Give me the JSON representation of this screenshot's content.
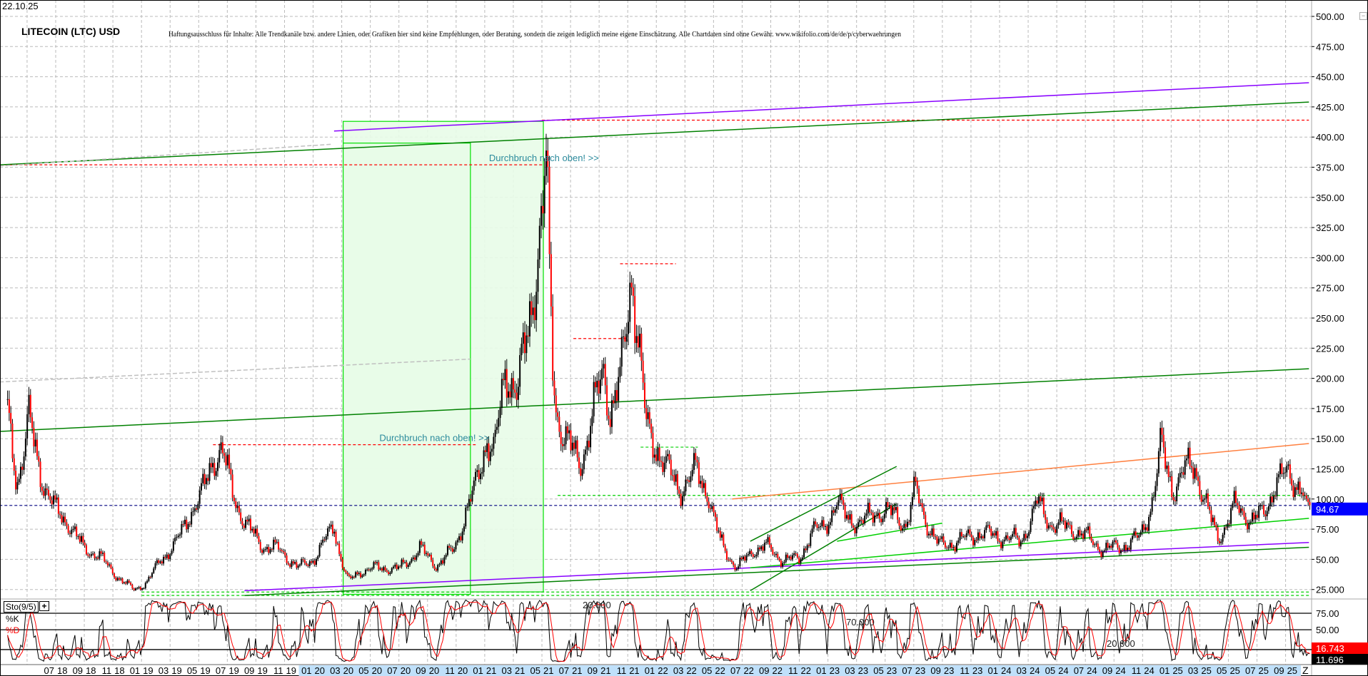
{
  "header": {
    "date": "22.10.25",
    "title": "LITECOIN (LTC) USD",
    "disclaimer": "Haftungsausschluss für Inhalte: Alle Trendkanäle bzw. andere Linien, oder Grafiken hier sind keine Empfehlungen, oder Beratung, sondern die zeigen lediglich meine eigene Einschätzung. Alle Chartdaten sind ohne Gewähr.  www.wikifolio.com/de/de/p/cyberwaehrungen"
  },
  "indicator": {
    "name": "Sto(9/5)",
    "k_label": "%K",
    "d_label": "%D",
    "plus_icon": "plus-icon",
    "collapse_icon": "minus-box-icon"
  },
  "colors": {
    "up": "#000000",
    "down": "#ff0000",
    "last_price_bg": "#0000ff",
    "sto_d_bg": "#ff0000",
    "sto_k_bg": "#000000",
    "annotation": "#2b8a9c",
    "zone_fill": "#e8fce8",
    "zone_stroke": "#00e000"
  },
  "chart_data": {
    "type": "candlestick",
    "title": "LITECOIN (LTC) USD",
    "ylim": [
      20,
      510
    ],
    "yticks": [
      "25.000",
      "50.00",
      "75.00",
      "100.00",
      "125.00",
      "150.00",
      "175.00",
      "200.00",
      "225.00",
      "250.00",
      "275.00",
      "300.00",
      "325.00",
      "350.00",
      "375.00",
      "400.00",
      "425.00",
      "450.00",
      "475.00",
      "500.00"
    ],
    "ytick_values": [
      25,
      50,
      75,
      100,
      125,
      150,
      175,
      200,
      225,
      250,
      275,
      300,
      325,
      350,
      375,
      400,
      425,
      450,
      475,
      500
    ],
    "xticks": [
      "07 18",
      "09 18",
      "11 18",
      "01 19",
      "03 19",
      "05 19",
      "07 19",
      "09 19",
      "11 19",
      "01 20",
      "03 20",
      "05 20",
      "07 20",
      "09 20",
      "11 20",
      "01 21",
      "03 21",
      "05 21",
      "07 21",
      "09 21",
      "11 21",
      "01 22",
      "03 22",
      "05 22",
      "07 22",
      "09 22",
      "11 22",
      "01 23",
      "03 23",
      "05 23",
      "07 23",
      "09 23",
      "11 23",
      "01 24",
      "03 24",
      "05 24",
      "07 24",
      "09 24",
      "11 24",
      "01 25",
      "03 25",
      "05 25",
      "07 25",
      "09 25"
    ],
    "xtick_dates": [
      "2018-07",
      "2018-09",
      "2018-11",
      "2019-01",
      "2019-03",
      "2019-05",
      "2019-07",
      "2019-09",
      "2019-11",
      "2020-01",
      "2020-03",
      "2020-05",
      "2020-07",
      "2020-09",
      "2020-11",
      "2021-01",
      "2021-03",
      "2021-05",
      "2021-07",
      "2021-09",
      "2021-11",
      "2022-01",
      "2022-03",
      "2022-05",
      "2022-07",
      "2022-09",
      "2022-11",
      "2023-01",
      "2023-03",
      "2023-05",
      "2023-07",
      "2023-09",
      "2023-11",
      "2024-01",
      "2024-03",
      "2024-05",
      "2024-07",
      "2024-09",
      "2024-11",
      "2025-01",
      "2025-03",
      "2025-05",
      "2025-07",
      "2025-09"
    ],
    "x_end_label": "Z",
    "grid": true,
    "last_price": 94.67,
    "last_price_label": "94.67",
    "price_points": [
      [
        "2018-03-20",
        170
      ],
      [
        "2018-04-10",
        115
      ],
      [
        "2018-05-05",
        166
      ],
      [
        "2018-06-01",
        119
      ],
      [
        "2018-07-01",
        90
      ],
      [
        "2018-08-01",
        79
      ],
      [
        "2018-09-01",
        58
      ],
      [
        "2018-10-01",
        54
      ],
      [
        "2018-11-10",
        36
      ],
      [
        "2018-12-15",
        25
      ],
      [
        "2019-01-10",
        30
      ],
      [
        "2019-02-10",
        50
      ],
      [
        "2019-03-10",
        61
      ],
      [
        "2019-04-10",
        87
      ],
      [
        "2019-05-05",
        101
      ],
      [
        "2019-06-01",
        134
      ],
      [
        "2019-06-20",
        141
      ],
      [
        "2019-07-10",
        108
      ],
      [
        "2019-08-10",
        79
      ],
      [
        "2019-09-15",
        61
      ],
      [
        "2019-10-20",
        58
      ],
      [
        "2019-12-01",
        43
      ],
      [
        "2020-01-01",
        50
      ],
      [
        "2020-01-25",
        65
      ],
      [
        "2020-02-15",
        79
      ],
      [
        "2020-03-15",
        32
      ],
      [
        "2020-04-10",
        40
      ],
      [
        "2020-05-15",
        43
      ],
      [
        "2020-07-01",
        42
      ],
      [
        "2020-08-15",
        59
      ],
      [
        "2020-09-20",
        45
      ],
      [
        "2020-10-25",
        58
      ],
      [
        "2020-11-20",
        87
      ],
      [
        "2020-12-10",
        108
      ],
      [
        "2021-01-05",
        152
      ],
      [
        "2021-01-20",
        137
      ],
      [
        "2021-02-15",
        210
      ],
      [
        "2021-03-10",
        188
      ],
      [
        "2021-04-01",
        239
      ],
      [
        "2021-04-15",
        282
      ],
      [
        "2021-05-05",
        347
      ],
      [
        "2021-05-10",
        376
      ],
      [
        "2021-05-25",
        202
      ],
      [
        "2021-06-05",
        166
      ],
      [
        "2021-06-25",
        145
      ],
      [
        "2021-07-20",
        130
      ],
      [
        "2021-08-05",
        148
      ],
      [
        "2021-08-25",
        181
      ],
      [
        "2021-09-10",
        210
      ],
      [
        "2021-09-25",
        173
      ],
      [
        "2021-10-15",
        195
      ],
      [
        "2021-11-05",
        275
      ],
      [
        "2021-11-10",
        293
      ],
      [
        "2021-11-30",
        202
      ],
      [
        "2021-12-10",
        159
      ],
      [
        "2022-01-05",
        141
      ],
      [
        "2022-01-25",
        123
      ],
      [
        "2022-02-20",
        108
      ],
      [
        "2022-03-25",
        123
      ],
      [
        "2022-04-20",
        105
      ],
      [
        "2022-05-15",
        65
      ],
      [
        "2022-06-20",
        43
      ],
      [
        "2022-07-25",
        58
      ],
      [
        "2022-08-20",
        61
      ],
      [
        "2022-09-25",
        50
      ],
      [
        "2022-10-30",
        50
      ],
      [
        "2022-11-25",
        72
      ],
      [
        "2022-12-20",
        76
      ],
      [
        "2023-01-20",
        97
      ],
      [
        "2023-02-05",
        87
      ],
      [
        "2023-03-10",
        79
      ],
      [
        "2023-04-10",
        90
      ],
      [
        "2023-05-20",
        87
      ],
      [
        "2023-06-15",
        79
      ],
      [
        "2023-07-05",
        108
      ],
      [
        "2023-07-30",
        79
      ],
      [
        "2023-08-25",
        61
      ],
      [
        "2023-10-05",
        65
      ],
      [
        "2023-11-20",
        72
      ],
      [
        "2024-01-10",
        68
      ],
      [
        "2024-02-15",
        65
      ],
      [
        "2024-03-20",
        97
      ],
      [
        "2024-04-20",
        79
      ],
      [
        "2024-05-30",
        76
      ],
      [
        "2024-07-05",
        68
      ],
      [
        "2024-08-10",
        58
      ],
      [
        "2024-09-20",
        61
      ],
      [
        "2024-10-25",
        68
      ],
      [
        "2024-11-20",
        97
      ],
      [
        "2024-12-05",
        130
      ],
      [
        "2024-12-10",
        145
      ],
      [
        "2025-01-05",
        108
      ],
      [
        "2025-01-30",
        123
      ],
      [
        "2025-02-20",
        130
      ],
      [
        "2025-03-20",
        87
      ],
      [
        "2025-04-10",
        68
      ],
      [
        "2025-05-15",
        94
      ],
      [
        "2025-06-20",
        83
      ],
      [
        "2025-07-15",
        87
      ],
      [
        "2025-08-10",
        115
      ],
      [
        "2025-09-05",
        119
      ],
      [
        "2025-10-01",
        112
      ],
      [
        "2025-10-22",
        94.67
      ]
    ],
    "trendlines": [
      {
        "from": [
          "2020-02-15",
          405
        ],
        "to": [
          "2025-10-20",
          445
        ],
        "color": "#8800ff",
        "style": "solid"
      },
      {
        "from": [
          "2018-03-03",
          377
        ],
        "to": [
          "2025-10-20",
          429
        ],
        "color": "#008000",
        "style": "solid"
      },
      {
        "from": [
          "2018-03-03",
          156
        ],
        "to": [
          "2025-10-20",
          208
        ],
        "color": "#008000",
        "style": "solid"
      },
      {
        "from": [
          "2019-08-07",
          24
        ],
        "to": [
          "2025-10-20",
          64
        ],
        "color": "#8800ff",
        "style": "solid"
      },
      {
        "from": [
          "2019-08-07",
          20
        ],
        "to": [
          "2025-10-20",
          60
        ],
        "color": "#008000",
        "style": "solid"
      },
      {
        "from": [
          "2022-07-18",
          43
        ],
        "to": [
          "2025-10-20",
          84
        ],
        "color": "#00d000",
        "style": "solid"
      },
      {
        "from": [
          "2022-06-10",
          100
        ],
        "to": [
          "2025-10-20",
          146
        ],
        "color": "#ff8040",
        "style": "solid"
      },
      {
        "from": [
          "2022-07-18",
          65
        ],
        "to": [
          "2023-05-25",
          127
        ],
        "color": "#008000",
        "style": "solid"
      },
      {
        "from": [
          "2022-07-18",
          24
        ],
        "to": [
          "2023-05-25",
          96
        ],
        "color": "#008000",
        "style": "solid"
      },
      {
        "from": [
          "2023-01-20",
          65
        ],
        "to": [
          "2023-09-01",
          80
        ],
        "color": "#00d000",
        "style": "solid"
      },
      {
        "from": [
          "2018-03-03",
          376
        ],
        "to": [
          "2020-02-09",
          394
        ],
        "color": "#c0c0c0",
        "style": "dashed"
      },
      {
        "from": [
          "2018-03-03",
          197
        ],
        "to": [
          "2020-12-01",
          216
        ],
        "color": "#c0c0c0",
        "style": "dashed"
      }
    ],
    "levels": [
      {
        "price": 414,
        "from": "2021-05-01",
        "to": "2025-10-20",
        "color": "#ff0000"
      },
      {
        "price": 377,
        "from": "2018-03-03",
        "to": "2021-05-05",
        "color": "#ff0000"
      },
      {
        "price": 145,
        "from": "2019-06-01",
        "to": "2020-12-12",
        "color": "#ff0000"
      },
      {
        "price": 295,
        "from": "2021-10-15",
        "to": "2022-02-12",
        "color": "#ff0000"
      },
      {
        "price": 233,
        "from": "2021-07-07",
        "to": "2021-11-01",
        "color": "#ff0000"
      },
      {
        "price": 103,
        "from": "2021-06-04",
        "to": "2025-10-20",
        "color": "#00d000"
      },
      {
        "price": 143,
        "from": "2021-11-28",
        "to": "2022-03-28",
        "color": "#00d000"
      },
      {
        "price": 22.9,
        "from": "2019-01-01",
        "to": "2025-10-20",
        "color": "#00d000"
      },
      {
        "price": 20.1,
        "from": "2019-01-01",
        "to": "2025-10-20",
        "color": "#00d000"
      },
      {
        "price": 94.67,
        "from": "2018-03-03",
        "to": "2025-10-20",
        "color": "#000080"
      }
    ],
    "zones": [
      {
        "from": "2020-03-04",
        "to": "2021-05-04",
        "top": 413,
        "bottom": 23
      },
      {
        "from": "2020-03-04",
        "to": "2020-12-01",
        "top": 395,
        "bottom": 21
      }
    ],
    "annotations": [
      {
        "text": "Durchbruch nach oben! >>",
        "date": "2021-01-10",
        "price": 380
      },
      {
        "text": "Durchbruch nach oben! >>",
        "date": "2020-05-20",
        "price": 148
      }
    ],
    "stochastic": {
      "period_k": 9,
      "period_d": 5,
      "levels": [
        75,
        50,
        20
      ],
      "level_tick_labels": [
        "75.00",
        "50.00"
      ],
      "pane_labels": [
        "20.000",
        "70.000",
        "20.000"
      ],
      "last_d": 16.743,
      "last_d_label": "16.743",
      "last_k": 11.696,
      "last_k_label": "11.696"
    }
  }
}
